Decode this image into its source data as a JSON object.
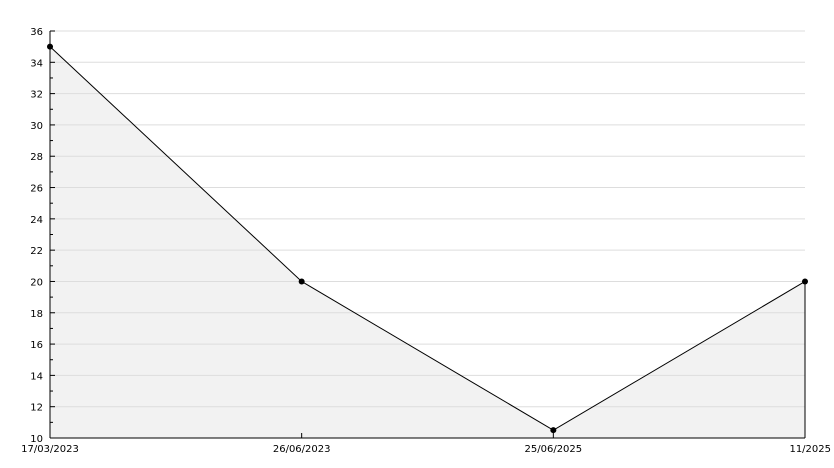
{
  "chart_data": {
    "type": "area",
    "categories": [
      "17/03/2023",
      "26/06/2023",
      "25/06/2025",
      "11/2025"
    ],
    "values": [
      35,
      20,
      10.5,
      20
    ],
    "title": "",
    "xlabel": "",
    "ylabel": "",
    "ylim": [
      10,
      36
    ],
    "yticks": [
      "10",
      "12",
      "14",
      "16",
      "18",
      "20",
      "22",
      "24",
      "26",
      "28",
      "30",
      "32",
      "34",
      "36"
    ],
    "grid": true,
    "colors": {
      "line": "#000000",
      "fill": "#f2f2f2",
      "grid": "#dddddd"
    }
  }
}
